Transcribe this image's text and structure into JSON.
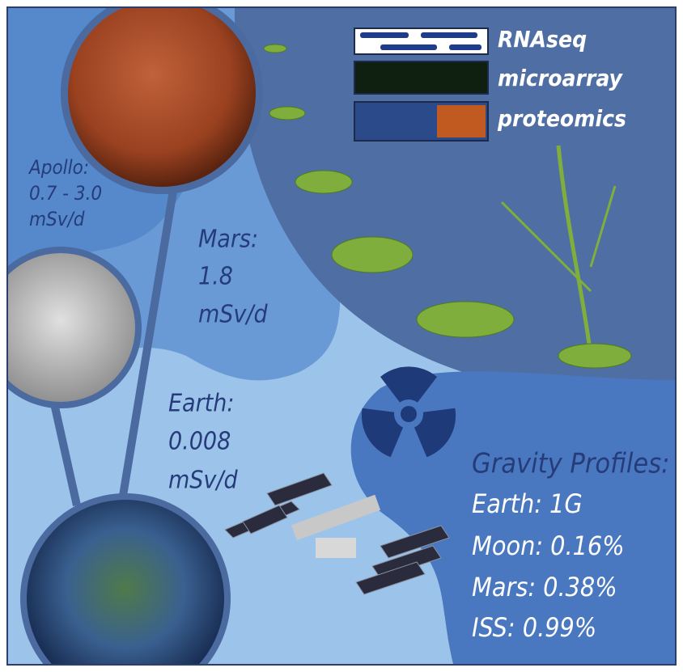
{
  "omics": [
    "RNAseq",
    "microarray",
    "proteomics"
  ],
  "doses": [
    {
      "lines": [
        "Apollo:",
        "0.7 - 3.0",
        "mSv/d"
      ]
    },
    {
      "lines": [
        "Mars:",
        "1.8",
        "mSv/d"
      ]
    },
    {
      "lines": [
        "Earth:",
        "0.008",
        "mSv/d"
      ]
    }
  ],
  "gravity": {
    "title": "Gravity Profiles:",
    "items": [
      "Earth: 1G",
      "Moon: 0.16%",
      "Mars: 0.38%",
      "ISS: 0.99%"
    ]
  }
}
